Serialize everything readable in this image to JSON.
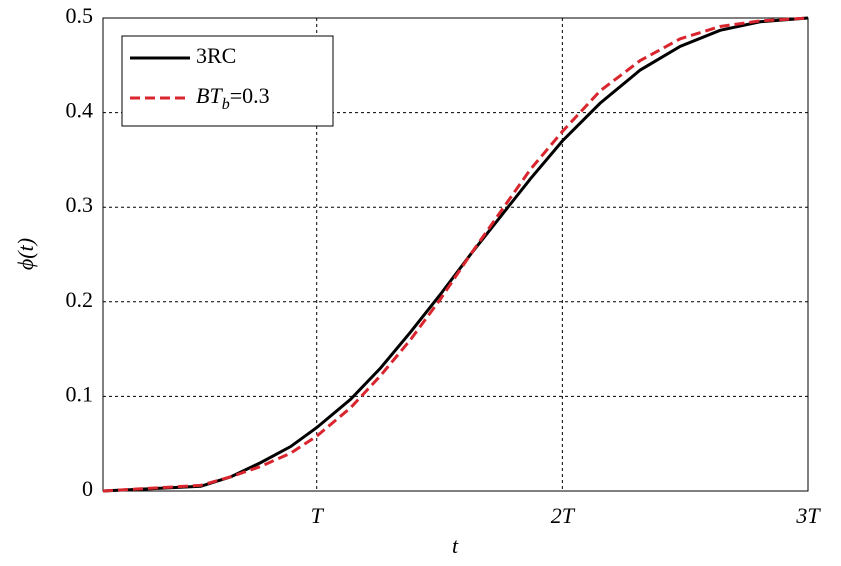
{
  "chart_data": {
    "type": "line",
    "x": [
      0.13,
      0.528,
      0.65,
      0.772,
      0.894,
      1.0,
      1.138,
      1.26,
      1.382,
      1.504,
      1.626,
      1.748,
      1.87,
      2.0,
      2.154,
      2.317,
      2.48,
      2.642,
      2.805,
      3.0
    ],
    "series": [
      {
        "name": "3RC",
        "color": "#000000",
        "dash": false,
        "values": [
          0,
          0.005,
          0.015,
          0.03,
          0.047,
          0.067,
          0.097,
          0.13,
          0.168,
          0.208,
          0.25,
          0.29,
          0.33,
          0.37,
          0.41,
          0.445,
          0.47,
          0.487,
          0.496,
          0.5
        ]
      },
      {
        "name": "BTb=0.3",
        "color": "#d9262e",
        "dash": true,
        "values": [
          0,
          0.006,
          0.015,
          0.026,
          0.04,
          0.058,
          0.088,
          0.122,
          0.16,
          0.203,
          0.25,
          0.295,
          0.34,
          0.38,
          0.423,
          0.455,
          0.478,
          0.491,
          0.497,
          0.5
        ]
      }
    ],
    "xlabel": "t",
    "ylabel": "ϕ(t)",
    "xlim": [
      0.13,
      3
    ],
    "ylim": [
      0,
      0.5
    ],
    "xticks": [
      {
        "value": 1,
        "label": "T"
      },
      {
        "value": 2,
        "label": "2T"
      },
      {
        "value": 3,
        "label": "3T"
      }
    ],
    "yticks": [
      0,
      0.1,
      0.2,
      0.3,
      0.4,
      0.5
    ],
    "grid": true,
    "legend": "upper-left"
  }
}
